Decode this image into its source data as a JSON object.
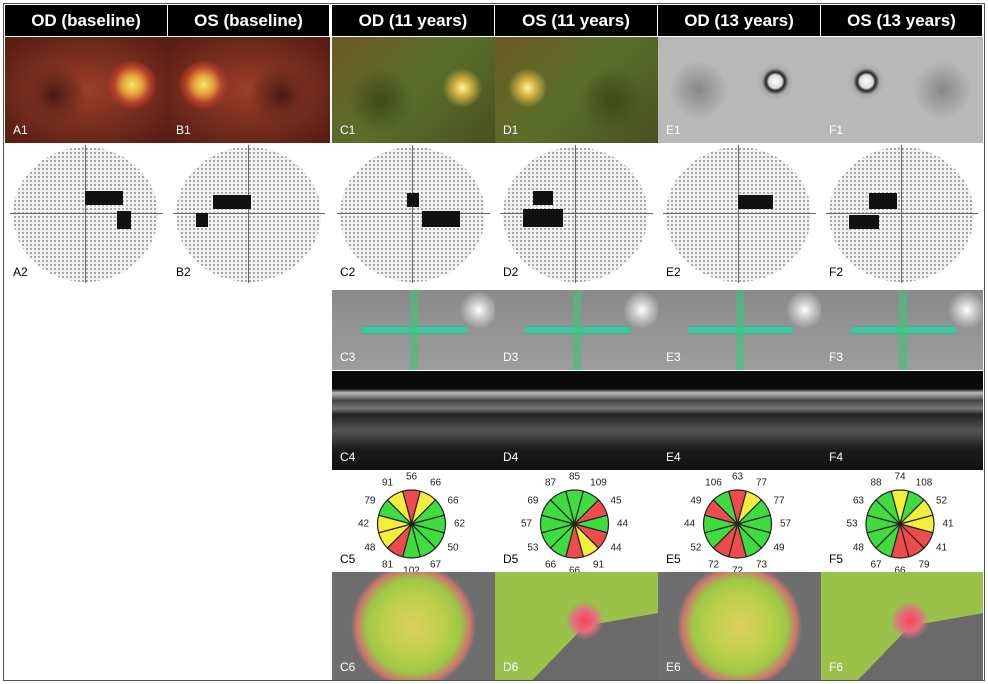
{
  "headers": [
    "OD (baseline)",
    "OS (baseline)",
    "OD (11 years)",
    "OS (11 years)",
    "OD (13 years)",
    "OS (13 years)"
  ],
  "row1": [
    "A1",
    "B1",
    "C1",
    "D1",
    "E1",
    "F1"
  ],
  "row2": [
    "A2",
    "B2",
    "C2",
    "D2",
    "E2",
    "F2"
  ],
  "row3": [
    "C3",
    "D3",
    "E3",
    "F3"
  ],
  "row4": [
    "C4",
    "D4",
    "E4",
    "F4"
  ],
  "row6": [
    "C6",
    "D6",
    "E6",
    "F6"
  ],
  "colors": {
    "green": "#3fdc3f",
    "yellow": "#f2ee3a",
    "red": "#ee4c4c"
  },
  "pies": [
    {
      "label": "C5",
      "values": [
        56,
        66,
        66,
        62,
        50,
        67,
        102,
        81,
        48,
        42,
        79,
        91
      ],
      "status": [
        "r",
        "y",
        "g",
        "g",
        "g",
        "g",
        "g",
        "r",
        "y",
        "y",
        "g",
        "y"
      ]
    },
    {
      "label": "D5",
      "values": [
        85,
        109,
        45,
        44,
        44,
        91,
        66,
        66,
        53,
        57,
        69,
        87
      ],
      "status": [
        "g",
        "g",
        "r",
        "g",
        "r",
        "y",
        "r",
        "g",
        "g",
        "g",
        "g",
        "g"
      ]
    },
    {
      "label": "E5",
      "values": [
        63,
        77,
        77,
        57,
        49,
        73,
        72,
        72,
        52,
        44,
        49,
        106
      ],
      "status": [
        "r",
        "y",
        "g",
        "g",
        "g",
        "g",
        "r",
        "r",
        "g",
        "g",
        "r",
        "g"
      ]
    },
    {
      "label": "F5",
      "values": [
        74,
        108,
        52,
        41,
        41,
        79,
        66,
        67,
        48,
        53,
        63,
        88
      ],
      "status": [
        "y",
        "g",
        "y",
        "y",
        "r",
        "r",
        "r",
        "g",
        "g",
        "g",
        "g",
        "g"
      ]
    }
  ]
}
